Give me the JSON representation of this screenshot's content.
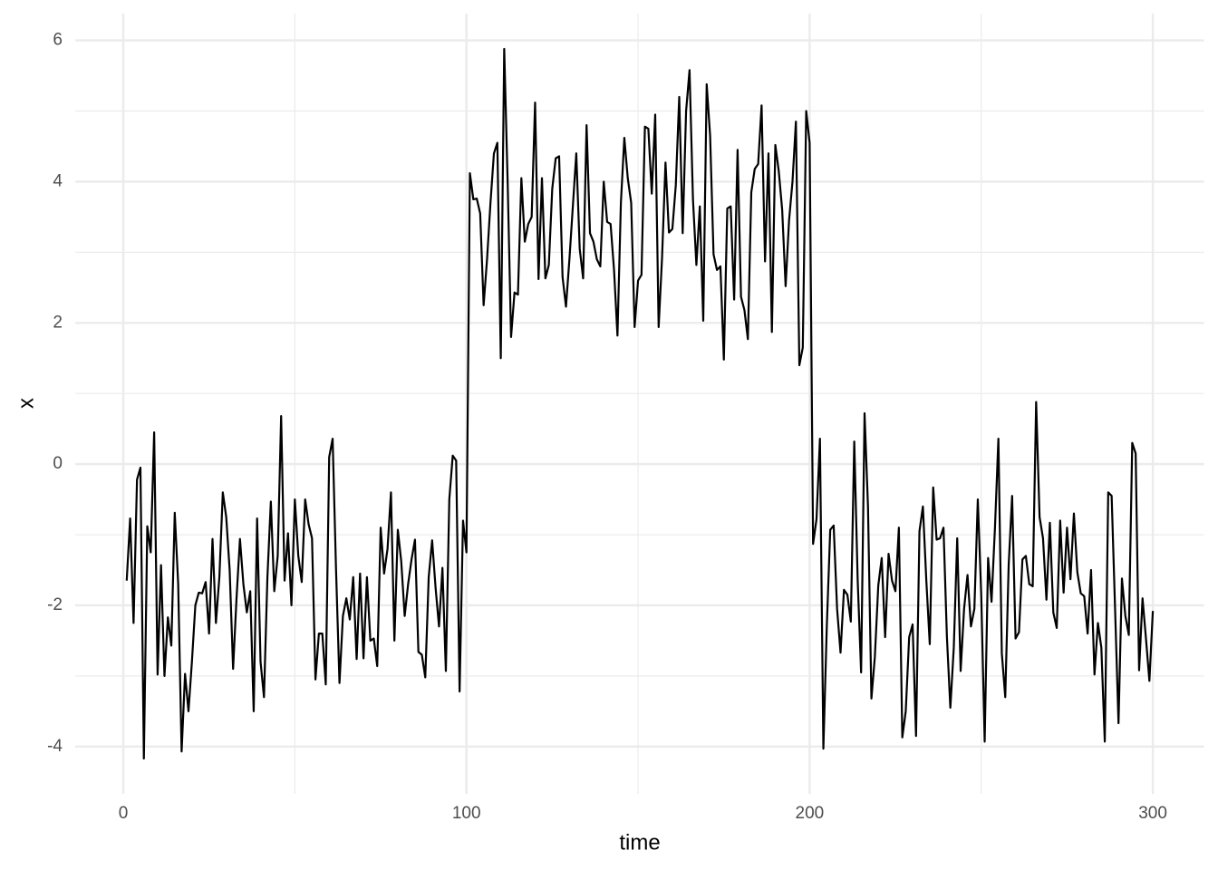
{
  "chart_data": {
    "type": "line",
    "x_label": "time",
    "y_label": "x",
    "x": [
      1,
      2,
      3,
      4,
      5,
      6,
      7,
      8,
      9,
      10,
      11,
      12,
      13,
      14,
      15,
      16,
      17,
      18,
      19,
      20,
      21,
      22,
      23,
      24,
      25,
      26,
      27,
      28,
      29,
      30,
      31,
      32,
      33,
      34,
      35,
      36,
      37,
      38,
      39,
      40,
      41,
      42,
      43,
      44,
      45,
      46,
      47,
      48,
      49,
      50,
      51,
      52,
      53,
      54,
      55,
      56,
      57,
      58,
      59,
      60,
      61,
      62,
      63,
      64,
      65,
      66,
      67,
      68,
      69,
      70,
      71,
      72,
      73,
      74,
      75,
      76,
      77,
      78,
      79,
      80,
      81,
      82,
      83,
      84,
      85,
      86,
      87,
      88,
      89,
      90,
      91,
      92,
      93,
      94,
      95,
      96,
      97,
      98,
      99,
      100,
      101,
      102,
      103,
      104,
      105,
      106,
      107,
      108,
      109,
      110,
      111,
      112,
      113,
      114,
      115,
      116,
      117,
      118,
      119,
      120,
      121,
      122,
      123,
      124,
      125,
      126,
      127,
      128,
      129,
      130,
      131,
      132,
      133,
      134,
      135,
      136,
      137,
      138,
      139,
      140,
      141,
      142,
      143,
      144,
      145,
      146,
      147,
      148,
      149,
      150,
      151,
      152,
      153,
      154,
      155,
      156,
      157,
      158,
      159,
      160,
      161,
      162,
      163,
      164,
      165,
      166,
      167,
      168,
      169,
      170,
      171,
      172,
      173,
      174,
      175,
      176,
      177,
      178,
      179,
      180,
      181,
      182,
      183,
      184,
      185,
      186,
      187,
      188,
      189,
      190,
      191,
      192,
      193,
      194,
      195,
      196,
      197,
      198,
      199,
      200,
      201,
      202,
      203,
      204,
      205,
      206,
      207,
      208,
      209,
      210,
      211,
      212,
      213,
      214,
      215,
      216,
      217,
      218,
      219,
      220,
      221,
      222,
      223,
      224,
      225,
      226,
      227,
      228,
      229,
      230,
      231,
      232,
      233,
      234,
      235,
      236,
      237,
      238,
      239,
      240,
      241,
      242,
      243,
      244,
      245,
      246,
      247,
      248,
      249,
      250,
      251,
      252,
      253,
      254,
      255,
      256,
      257,
      258,
      259,
      260,
      261,
      262,
      263,
      264,
      265,
      266,
      267,
      268,
      269,
      270,
      271,
      272,
      273,
      274,
      275,
      276,
      277,
      278,
      279,
      280,
      281,
      282,
      283,
      284,
      285,
      286,
      287,
      288,
      289,
      290,
      291,
      292,
      293,
      294,
      295,
      296,
      297,
      298,
      299,
      300
    ],
    "values": [
      -1.65,
      -0.77,
      -2.25,
      -0.22,
      -0.05,
      -4.17,
      -0.88,
      -1.25,
      0.45,
      -2.98,
      -1.43,
      -3.0,
      -2.17,
      -2.57,
      -0.69,
      -1.7,
      -4.07,
      -2.97,
      -3.5,
      -2.8,
      -2.0,
      -1.82,
      -1.83,
      -1.67,
      -2.4,
      -1.06,
      -2.25,
      -1.6,
      -0.4,
      -0.75,
      -1.5,
      -2.9,
      -1.9,
      -1.06,
      -1.7,
      -2.1,
      -1.8,
      -3.5,
      -0.77,
      -2.8,
      -3.3,
      -1.6,
      -0.53,
      -1.8,
      -1.3,
      0.68,
      -1.65,
      -0.98,
      -2.0,
      -0.5,
      -1.3,
      -1.67,
      -0.5,
      -0.85,
      -1.05,
      -3.05,
      -2.4,
      -2.4,
      -3.12,
      0.1,
      0.36,
      -1.5,
      -3.1,
      -2.15,
      -1.9,
      -2.2,
      -1.6,
      -2.76,
      -1.55,
      -2.75,
      -1.6,
      -2.5,
      -2.47,
      -2.86,
      -0.9,
      -1.55,
      -1.2,
      -0.4,
      -2.5,
      -0.93,
      -1.38,
      -2.15,
      -1.7,
      -1.35,
      -1.07,
      -2.66,
      -2.7,
      -3.02,
      -1.6,
      -1.08,
      -1.75,
      -2.3,
      -1.47,
      -2.93,
      -0.5,
      0.12,
      0.05,
      -3.22,
      -0.8,
      -1.25,
      4.12,
      3.75,
      3.76,
      3.55,
      2.25,
      2.9,
      3.7,
      4.4,
      4.55,
      1.5,
      5.88,
      4.0,
      1.8,
      2.43,
      2.4,
      4.05,
      3.15,
      3.4,
      3.5,
      5.12,
      2.62,
      4.05,
      2.63,
      2.82,
      3.9,
      4.33,
      4.36,
      2.65,
      2.23,
      2.9,
      3.65,
      4.4,
      3.05,
      2.63,
      4.8,
      3.27,
      3.15,
      2.9,
      2.8,
      4.0,
      3.43,
      3.4,
      2.75,
      1.82,
      3.7,
      4.62,
      4.05,
      3.7,
      1.94,
      2.6,
      2.68,
      4.78,
      4.75,
      3.83,
      4.95,
      1.94,
      2.93,
      4.27,
      3.28,
      3.33,
      3.95,
      5.2,
      3.27,
      5.0,
      5.58,
      3.75,
      2.82,
      3.65,
      2.03,
      5.38,
      4.65,
      2.97,
      2.75,
      2.8,
      1.48,
      3.62,
      3.65,
      2.33,
      4.45,
      2.37,
      2.18,
      1.77,
      3.85,
      4.18,
      4.25,
      5.08,
      2.87,
      4.4,
      1.87,
      4.52,
      4.15,
      3.6,
      2.52,
      3.45,
      4.0,
      4.85,
      1.4,
      1.65,
      5.0,
      4.55,
      -1.13,
      -0.78,
      0.36,
      -4.03,
      -2.3,
      -0.93,
      -0.87,
      -2.05,
      -2.67,
      -1.78,
      -1.85,
      -2.23,
      0.32,
      -1.65,
      -2.95,
      0.72,
      -0.6,
      -3.32,
      -2.73,
      -1.72,
      -1.33,
      -2.45,
      -1.27,
      -1.65,
      -1.8,
      -0.9,
      -3.87,
      -3.5,
      -2.45,
      -2.27,
      -3.85,
      -0.95,
      -0.6,
      -1.65,
      -2.55,
      -0.33,
      -1.07,
      -1.05,
      -0.9,
      -2.45,
      -3.45,
      -2.6,
      -1.05,
      -2.93,
      -2.05,
      -1.57,
      -2.3,
      -2.05,
      -0.5,
      -1.85,
      -3.93,
      -1.33,
      -1.95,
      -0.9,
      0.36,
      -2.68,
      -3.3,
      -1.42,
      -0.45,
      -2.47,
      -2.38,
      -1.35,
      -1.3,
      -1.7,
      -1.73,
      0.88,
      -0.75,
      -1.05,
      -1.92,
      -0.83,
      -2.1,
      -2.32,
      -0.8,
      -1.82,
      -0.9,
      -1.63,
      -0.7,
      -1.53,
      -1.83,
      -1.87,
      -2.4,
      -1.5,
      -2.98,
      -2.25,
      -2.6,
      -3.93,
      -0.4,
      -0.45,
      -2.05,
      -3.67,
      -1.62,
      -2.15,
      -2.42,
      0.3,
      0.15,
      -2.92,
      -1.9,
      -2.47,
      -3.07,
      -2.08
    ],
    "color": "#000000",
    "xlim": [
      -13.95,
      314.95
    ],
    "ylim": [
      -4.67,
      6.38
    ],
    "xticks": [
      0,
      100,
      200,
      300
    ],
    "yticks": [
      -4,
      -2,
      0,
      2,
      4,
      6
    ],
    "x_minor_breaks": [
      50,
      150,
      250
    ],
    "y_minor_breaks": [
      -3,
      -1,
      1,
      3,
      5
    ],
    "grid": true
  }
}
